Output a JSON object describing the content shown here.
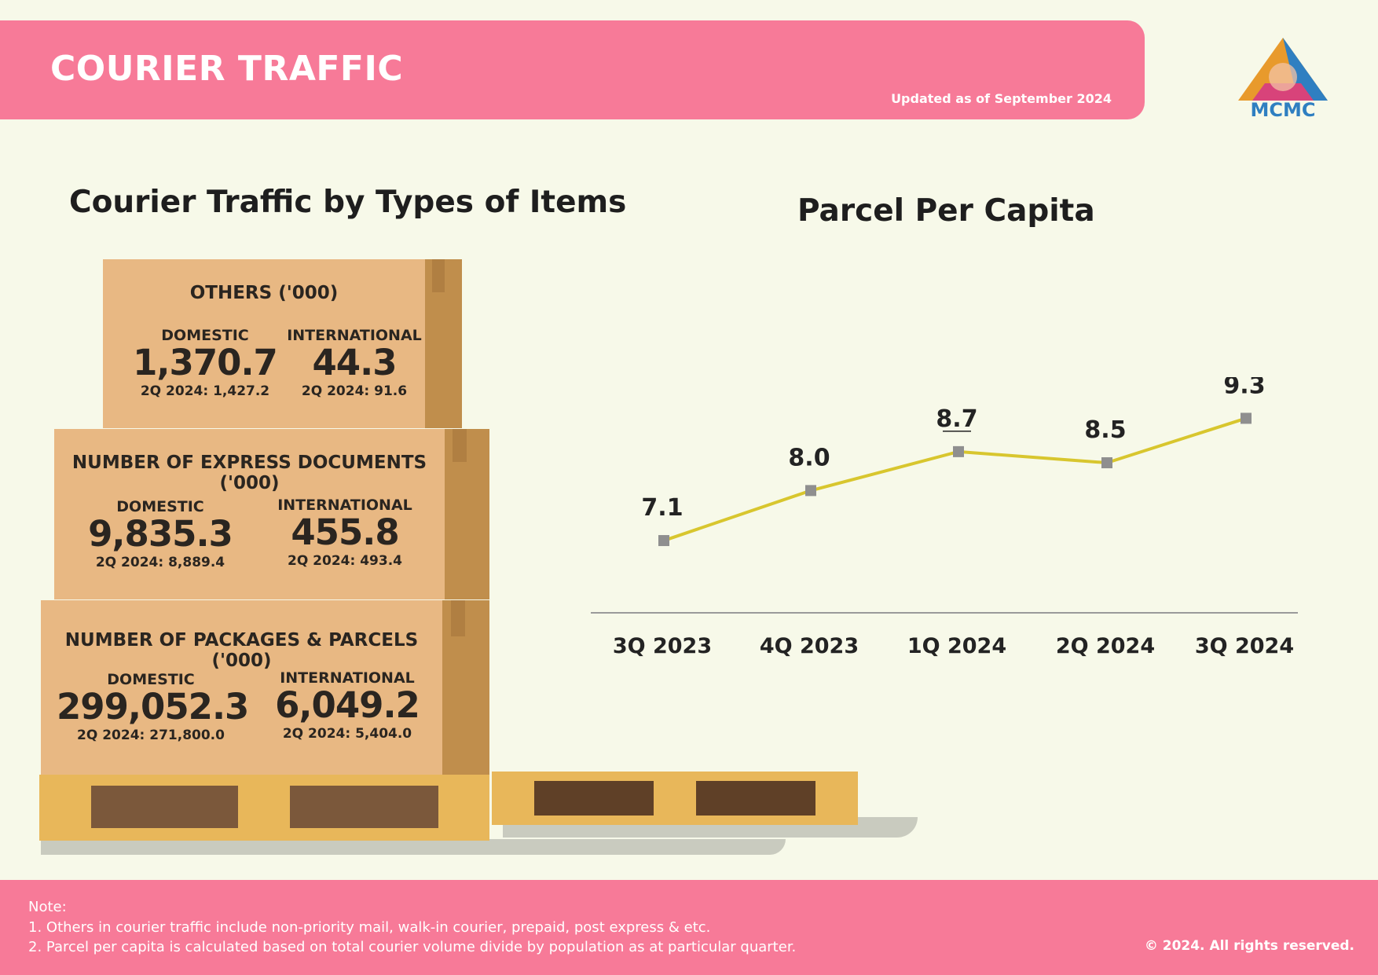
{
  "header": {
    "title": "COURIER TRAFFIC",
    "updated": "Updated as of September 2024",
    "logo_text": "MCMC"
  },
  "left_section": {
    "title": "Courier Traffic by Types of Items",
    "boxes": [
      {
        "title": "OTHERS ('000)",
        "domestic": {
          "label": "DOMESTIC",
          "value": "1,370.7",
          "prev": "2Q 2024: 1,427.2"
        },
        "international": {
          "label": "INTERNATIONAL",
          "value": "44.3",
          "prev": "2Q 2024:  91.6"
        }
      },
      {
        "title": "NUMBER OF EXPRESS DOCUMENTS ('000)",
        "domestic": {
          "label": "DOMESTIC",
          "value": "9,835.3",
          "prev": "2Q 2024: 8,889.4"
        },
        "international": {
          "label": "INTERNATIONAL",
          "value": "455.8",
          "prev": "2Q 2024: 493.4"
        }
      },
      {
        "title": "NUMBER OF PACKAGES & PARCELS ('000)",
        "domestic": {
          "label": "DOMESTIC",
          "value": "299,052.3",
          "prev": "2Q 2024: 271,800.0"
        },
        "international": {
          "label": "INTERNATIONAL",
          "value": "6,049.2",
          "prev": "2Q 2024: 5,404.0"
        }
      }
    ]
  },
  "chart_data": {
    "type": "line",
    "title": "Parcel Per Capita",
    "categories": [
      "3Q 2023",
      "4Q 2023",
      "1Q 2024",
      "2Q 2024",
      "3Q 2024"
    ],
    "values": [
      7.1,
      8.0,
      8.7,
      8.5,
      9.3
    ],
    "data_labels": [
      "7.1",
      "8.0",
      "8.7",
      "8.5",
      "9.3"
    ],
    "ylim": [
      5.8,
      9.9
    ],
    "line_color": "#d8c62e",
    "marker_color": "#8f8f8f",
    "grid": false
  },
  "footer": {
    "note_heading": "Note:",
    "notes": [
      "1.  Others in courier traffic include non-priority mail, walk-in courier, prepaid, post express & etc.",
      "2. Parcel per capita is calculated based on total courier volume divide by population as at particular quarter."
    ],
    "copyright": "© 2024. All rights reserved."
  },
  "colors": {
    "header_pink": "#f77a98",
    "background": "#f7f9e9",
    "box_tan": "#e8b883"
  }
}
